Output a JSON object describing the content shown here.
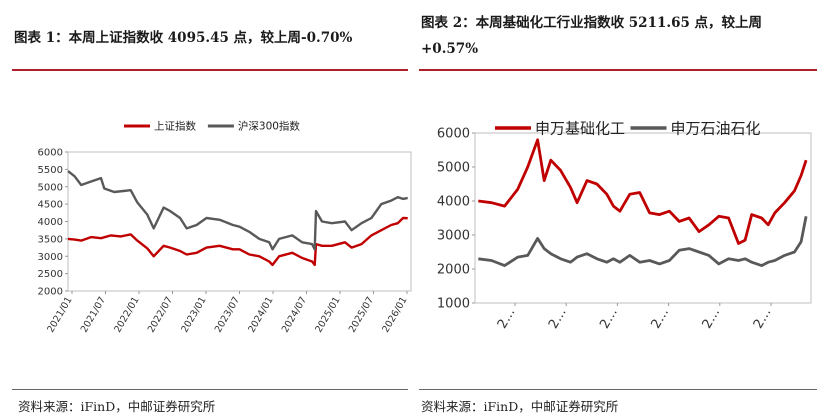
{
  "left_panel": {
    "title": "图表 1：本周上证指数收 4095.45 点，较上周-0.70%",
    "source": "资料来源：iFinD，中邮证券研究所"
  },
  "right_panel": {
    "title": "图表 2：本周基础化工行业指数收 5211.65 点，较上周+0.57%",
    "source": "资料来源：iFinD，中邮证券研究所"
  },
  "colors": {
    "red": "#c00000",
    "gray": "#595959",
    "accent": "#b0202a"
  },
  "chart_data": [
    {
      "type": "line",
      "title": "",
      "ylim": [
        2000,
        6000
      ],
      "yticks": [
        2000,
        2500,
        3000,
        3500,
        4000,
        4500,
        5000,
        5500,
        6000
      ],
      "xticks": [
        "2021/01",
        "2021/07",
        "2022/01",
        "2022/07",
        "2023/01",
        "2023/07",
        "2024/01",
        "2024/07",
        "2025/01",
        "2025/07",
        "2026/01"
      ],
      "xlim": [
        2021.0,
        2026.2
      ],
      "legend": "top",
      "series": [
        {
          "name": "上证指数",
          "color": "#c00000",
          "x": [
            2021.0,
            2021.1,
            2021.2,
            2021.35,
            2021.5,
            2021.65,
            2021.8,
            2021.95,
            2022.05,
            2022.2,
            2022.3,
            2022.45,
            2022.55,
            2022.7,
            2022.8,
            2022.95,
            2023.1,
            2023.3,
            2023.5,
            2023.6,
            2023.75,
            2023.9,
            2024.05,
            2024.1,
            2024.2,
            2024.4,
            2024.55,
            2024.7,
            2024.74,
            2024.76,
            2024.85,
            2025.0,
            2025.2,
            2025.3,
            2025.45,
            2025.6,
            2025.75,
            2025.9,
            2026.0,
            2026.08,
            2026.15
          ],
          "values": [
            3500,
            3480,
            3450,
            3550,
            3520,
            3600,
            3570,
            3630,
            3450,
            3230,
            3000,
            3300,
            3250,
            3150,
            3050,
            3100,
            3250,
            3300,
            3200,
            3200,
            3050,
            3000,
            2850,
            2750,
            3000,
            3100,
            2950,
            2850,
            2750,
            3350,
            3300,
            3300,
            3400,
            3250,
            3350,
            3600,
            3750,
            3900,
            3950,
            4100,
            4095
          ]
        },
        {
          "name": "沪深300指数",
          "color": "#595959",
          "x": [
            2021.0,
            2021.1,
            2021.2,
            2021.35,
            2021.5,
            2021.55,
            2021.7,
            2021.95,
            2022.05,
            2022.2,
            2022.3,
            2022.45,
            2022.55,
            2022.7,
            2022.8,
            2022.95,
            2023.1,
            2023.3,
            2023.5,
            2023.6,
            2023.75,
            2023.9,
            2024.05,
            2024.1,
            2024.2,
            2024.4,
            2024.55,
            2024.7,
            2024.74,
            2024.76,
            2024.85,
            2025.0,
            2025.2,
            2025.3,
            2025.45,
            2025.6,
            2025.75,
            2025.9,
            2026.0,
            2026.08,
            2026.15
          ],
          "values": [
            5450,
            5300,
            5050,
            5150,
            5250,
            4950,
            4850,
            4900,
            4550,
            4200,
            3800,
            4400,
            4300,
            4100,
            3800,
            3900,
            4100,
            4050,
            3900,
            3850,
            3700,
            3500,
            3400,
            3200,
            3500,
            3600,
            3400,
            3350,
            3200,
            4300,
            4000,
            3950,
            4000,
            3750,
            3950,
            4100,
            4500,
            4600,
            4700,
            4650,
            4680
          ]
        }
      ]
    },
    {
      "type": "line",
      "title": "",
      "ylim": [
        1000,
        6000
      ],
      "yticks": [
        1000,
        2000,
        3000,
        4000,
        5000,
        6000
      ],
      "xticks": [
        "2…",
        "2…",
        "2…",
        "2…",
        "2…",
        "2…"
      ],
      "xlim": [
        2015.9,
        2026.1
      ],
      "legend": "top",
      "series": [
        {
          "name": "申万基础化工",
          "color": "#c00000",
          "x": [
            2016.0,
            2016.4,
            2016.8,
            2017.2,
            2017.5,
            2017.8,
            2018.0,
            2018.2,
            2018.5,
            2018.8,
            2019.0,
            2019.3,
            2019.6,
            2019.9,
            2020.1,
            2020.3,
            2020.6,
            2020.9,
            2021.2,
            2021.5,
            2021.8,
            2022.1,
            2022.4,
            2022.7,
            2023.0,
            2023.3,
            2023.6,
            2023.9,
            2024.1,
            2024.3,
            2024.6,
            2024.8,
            2025.0,
            2025.3,
            2025.6,
            2025.8,
            2025.95
          ],
          "values": [
            4000,
            3950,
            3850,
            4350,
            5000,
            5800,
            4600,
            5200,
            4900,
            4400,
            3950,
            4600,
            4500,
            4200,
            3850,
            3700,
            4200,
            4250,
            3650,
            3600,
            3700,
            3400,
            3500,
            3100,
            3300,
            3550,
            3500,
            2750,
            2850,
            3600,
            3500,
            3300,
            3650,
            3950,
            4300,
            4750,
            5200
          ]
        },
        {
          "name": "申万石油石化",
          "color": "#595959",
          "x": [
            2016.0,
            2016.4,
            2016.8,
            2017.2,
            2017.5,
            2017.8,
            2018.0,
            2018.2,
            2018.5,
            2018.8,
            2019.0,
            2019.3,
            2019.6,
            2019.9,
            2020.1,
            2020.3,
            2020.6,
            2020.9,
            2021.2,
            2021.5,
            2021.8,
            2022.1,
            2022.4,
            2022.7,
            2023.0,
            2023.3,
            2023.6,
            2023.9,
            2024.1,
            2024.3,
            2024.6,
            2024.8,
            2025.0,
            2025.3,
            2025.6,
            2025.8,
            2025.95
          ],
          "values": [
            2300,
            2250,
            2100,
            2350,
            2400,
            2900,
            2600,
            2450,
            2300,
            2200,
            2350,
            2450,
            2300,
            2200,
            2300,
            2200,
            2400,
            2200,
            2250,
            2150,
            2250,
            2550,
            2600,
            2500,
            2400,
            2150,
            2300,
            2250,
            2300,
            2200,
            2100,
            2200,
            2250,
            2400,
            2500,
            2800,
            3550
          ]
        }
      ]
    }
  ]
}
